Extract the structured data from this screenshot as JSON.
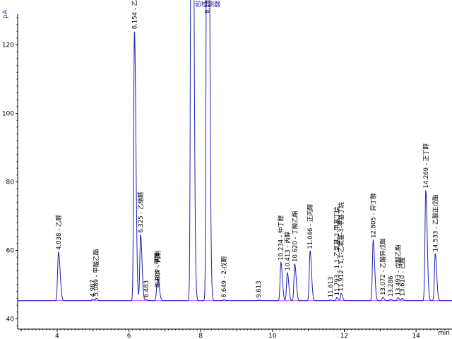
{
  "chart_data": {
    "type": "line",
    "title": "前检测器",
    "ylabel": "pA",
    "xlabel": "min",
    "xlim": [
      2.9,
      15.0
    ],
    "ylim": [
      37,
      129
    ],
    "x_ticks": [
      4,
      6,
      8,
      10,
      12,
      14
    ],
    "y_ticks": [
      40,
      60,
      80,
      100,
      120
    ],
    "baseline": 45.3,
    "trace_color": "#1f1fb4",
    "baseline_color": "#e040e0",
    "peaks": [
      {
        "rt": 4.038,
        "label": "4.038 - 乙醛",
        "height": 59.5,
        "width": 0.025
      },
      {
        "rt": 4.987,
        "label": "4.987",
        "height": 45.8,
        "width": 0.02
      },
      {
        "rt": 5.089,
        "label": "5.089 - 甲酸乙酯",
        "height": 46.0,
        "width": 0.02
      },
      {
        "rt": 6.154,
        "label": "6.154 - 乙酸乙酯",
        "height": 124.0,
        "width": 0.022
      },
      {
        "rt": 6.325,
        "label": "6.325 - 乙缩醛",
        "height": 64.5,
        "width": 0.022
      },
      {
        "rt": 6.483,
        "label": "6.483",
        "height": 45.6,
        "width": 0.02
      },
      {
        "rt": 6.788,
        "label": "6.788 - 甲醇",
        "height": 48.5,
        "width": 0.025
      },
      {
        "rt": 6.807,
        "label": "6.807 - 丙酮",
        "height": 49.0,
        "width": 0.025
      },
      {
        "rt": 7.75,
        "label": "",
        "height": 300.0,
        "width": 0.025
      },
      {
        "rt": 8.187,
        "label": "8.187",
        "height": 300.0,
        "width": 0.025
      },
      {
        "rt": 8.649,
        "label": "8.649 - 2-戊酮",
        "height": 45.6,
        "width": 0.02
      },
      {
        "rt": 9.613,
        "label": "9.613",
        "height": 45.5,
        "width": 0.02
      },
      {
        "rt": 10.234,
        "label": "10.234 - 仲丁醇",
        "height": 56.5,
        "width": 0.022
      },
      {
        "rt": 10.413,
        "label": "10.413 - 丙醇",
        "height": 53.5,
        "width": 0.022
      },
      {
        "rt": 10.62,
        "label": "10.620 - 丁酸乙酯",
        "height": 56.0,
        "width": 0.022
      },
      {
        "rt": 11.046,
        "label": "11.046 - 正丙醇",
        "height": 59.8,
        "width": 0.022
      },
      {
        "rt": 11.613,
        "label": "11.613",
        "height": 45.6,
        "width": 0.02
      },
      {
        "rt": 11.793,
        "label": "11.793 - 1,1-乙氧基-2-甲基丁烷",
        "height": 46.2,
        "width": 0.02
      },
      {
        "rt": 11.912,
        "label": "11.912 - 1,1-乙氧基-3-甲基丁烷",
        "height": 47.5,
        "width": 0.02
      },
      {
        "rt": 12.805,
        "label": "12.805 - 异丁醇",
        "height": 63.0,
        "width": 0.022
      },
      {
        "rt": 13.072,
        "label": "13.072 - 乙酸异戊酯",
        "height": 46.3,
        "width": 0.02
      },
      {
        "rt": 13.286,
        "label": "13.286",
        "height": 45.8,
        "width": 0.02
      },
      {
        "rt": 13.493,
        "label": "13.493 - 戊酸乙酯",
        "height": 46.2,
        "width": 0.02
      },
      {
        "rt": 13.61,
        "label": "13.610 - 己酸",
        "height": 46.0,
        "width": 0.02
      },
      {
        "rt": 14.269,
        "label": "14.269 - 正丁醇",
        "height": 77.5,
        "width": 0.022
      },
      {
        "rt": 14.533,
        "label": "14.533 - 乙酸正戊酯",
        "height": 59.0,
        "width": 0.022
      }
    ]
  }
}
